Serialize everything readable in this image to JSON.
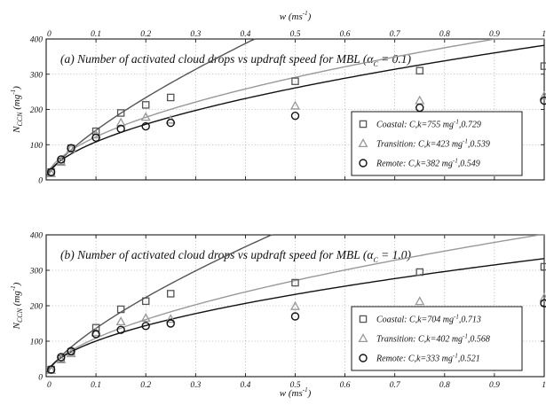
{
  "x_axis": {
    "label": "w",
    "unit_prefix": "(ms",
    "unit_exp": "-1",
    "unit_suffix": ")",
    "ticks": [
      "0",
      "0.1",
      "0.2",
      "0.3",
      "0.4",
      "0.5",
      "0.6",
      "0.7",
      "0.8",
      "0.9",
      "1"
    ]
  },
  "y_axis": {
    "label": "N",
    "label_sub": "CCN",
    "unit_prefix": " (mg",
    "unit_exp": "-1",
    "unit_suffix": ")",
    "ticks": [
      "0",
      "100",
      "200",
      "300",
      "400"
    ]
  },
  "colors": {
    "coastal": "#555555",
    "transition": "#999999",
    "remote": "#111111"
  },
  "chart_data": [
    {
      "type": "scatter",
      "title_pre": "(a) Number of activated cloud drops vs updraft speed for MBL (α",
      "title_sub": "C",
      "title_post": "= 0.1)",
      "xlim": [
        0,
        1
      ],
      "ylim": [
        0,
        400
      ],
      "grid": true,
      "legend_position": "center-right",
      "x": [
        0.01,
        0.03,
        0.05,
        0.1,
        0.15,
        0.2,
        0.25,
        0.5,
        0.75,
        1.0
      ],
      "series": [
        {
          "name": "Coastal",
          "legend_pre": "Coastal: C,k=755 mg",
          "legend_exp": "-1",
          "legend_post": ",0.729",
          "marker": "square",
          "values": [
            22,
            52,
            90,
            138,
            190,
            213,
            234,
            280,
            310,
            323
          ],
          "fit": {
            "C": 755,
            "k": 0.729
          }
        },
        {
          "name": "Transition",
          "legend_pre": "Transition: C,k=423 mg",
          "legend_exp": "-1",
          "legend_post": ",0.539",
          "marker": "triangle",
          "values": [
            18,
            50,
            88,
            128,
            162,
            178,
            170,
            210,
            225,
            238
          ],
          "fit": {
            "C": 423,
            "k": 0.539
          }
        },
        {
          "name": "Remote",
          "legend_pre": "Remote: C,k=382 mg",
          "legend_exp": "-1",
          "legend_post": ",0.549",
          "marker": "circle",
          "values": [
            22,
            58,
            90,
            120,
            145,
            152,
            162,
            182,
            205,
            225
          ],
          "fit": {
            "C": 382,
            "k": 0.549
          }
        }
      ]
    },
    {
      "type": "scatter",
      "title_pre": "(b) Number of activated cloud drops vs updraft speed for MBL (α",
      "title_sub": "C",
      "title_post": "= 1.0)",
      "xlim": [
        0,
        1
      ],
      "ylim": [
        0,
        400
      ],
      "grid": true,
      "legend_position": "center-right",
      "x": [
        0.01,
        0.03,
        0.05,
        0.1,
        0.15,
        0.2,
        0.25,
        0.5,
        0.75,
        1.0
      ],
      "series": [
        {
          "name": "Coastal",
          "legend_pre": "Coastal: C,k=704 mg",
          "legend_exp": "-1",
          "legend_post": ",0.713",
          "marker": "square",
          "values": [
            20,
            50,
            70,
            138,
            190,
            213,
            234,
            265,
            295,
            310
          ],
          "fit": {
            "C": 704,
            "k": 0.713
          }
        },
        {
          "name": "Transition",
          "legend_pre": "Transition: C,k=402 mg",
          "legend_exp": "-1",
          "legend_post": ",0.568",
          "marker": "triangle",
          "values": [
            18,
            48,
            65,
            124,
            155,
            165,
            162,
            198,
            212,
            222
          ],
          "fit": {
            "C": 402,
            "k": 0.568
          }
        },
        {
          "name": "Remote",
          "legend_pre": "Remote: C,k=333 mg",
          "legend_exp": "-1",
          "legend_post": ",0.521",
          "marker": "circle",
          "values": [
            20,
            55,
            72,
            120,
            132,
            143,
            150,
            170,
            182,
            207
          ],
          "fit": {
            "C": 333,
            "k": 0.521
          }
        }
      ]
    }
  ]
}
